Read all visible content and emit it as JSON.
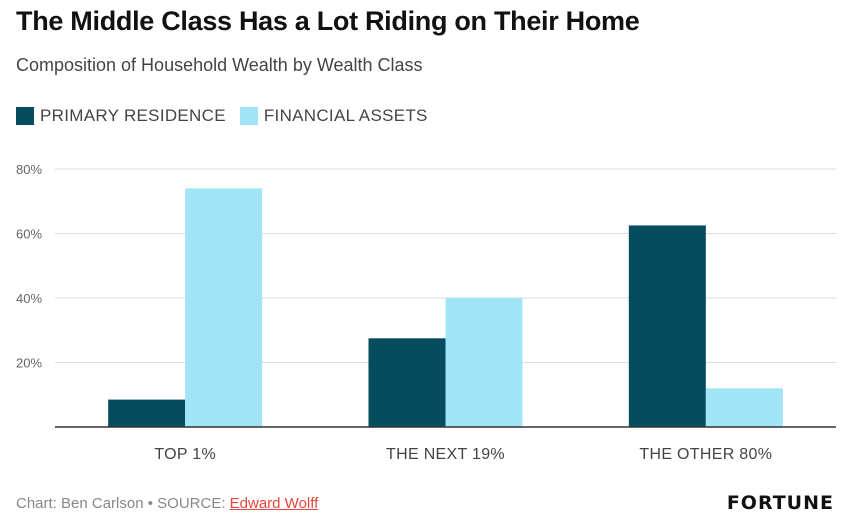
{
  "header": {
    "title": "The Middle Class Has a Lot Riding on Their Home",
    "subtitle": "Composition of Household Wealth by Wealth Class"
  },
  "legend": [
    {
      "label": "PRIMARY RESIDENCE",
      "color": "#054d5e"
    },
    {
      "label": "FINANCIAL ASSETS",
      "color": "#a0e4f6"
    }
  ],
  "chart_data": {
    "type": "bar",
    "categories": [
      "TOP 1%",
      "THE NEXT 19%",
      "THE OTHER 80%"
    ],
    "series": [
      {
        "name": "PRIMARY RESIDENCE",
        "values": [
          8.5,
          27.5,
          62.5
        ],
        "color": "#054d5e"
      },
      {
        "name": "FINANCIAL ASSETS",
        "values": [
          74,
          40,
          12
        ],
        "color": "#a0e4f6"
      }
    ],
    "ylim": [
      0,
      80
    ],
    "yticks": [
      20,
      40,
      60,
      80
    ],
    "ytick_labels": [
      "20%",
      "40%",
      "60%",
      "80%"
    ],
    "grid": true,
    "legend_position": "top-left"
  },
  "footer": {
    "credit": "Chart: Ben Carlson • SOURCE: ",
    "source_link": "Edward Wolff",
    "brand": "FORTUNE"
  }
}
